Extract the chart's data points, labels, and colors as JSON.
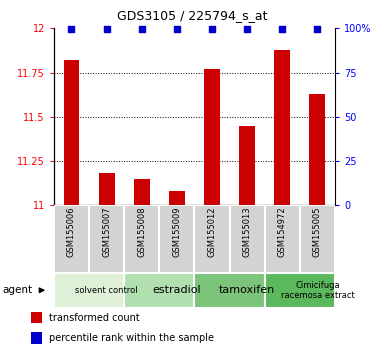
{
  "title": "GDS3105 / 225794_s_at",
  "samples": [
    "GSM155006",
    "GSM155007",
    "GSM155008",
    "GSM155009",
    "GSM155012",
    "GSM155013",
    "GSM154972",
    "GSM155005"
  ],
  "bar_values": [
    11.82,
    11.18,
    11.15,
    11.08,
    11.77,
    11.45,
    11.88,
    11.63
  ],
  "percentile_values": [
    99.5,
    99.5,
    99.5,
    99.5,
    99.5,
    99.5,
    99.5,
    99.5
  ],
  "ylim_left": [
    11.0,
    12.0
  ],
  "ylim_right": [
    0,
    100
  ],
  "yticks_left": [
    11.0,
    11.25,
    11.5,
    11.75,
    12.0
  ],
  "yticks_right": [
    0,
    25,
    50,
    75,
    100
  ],
  "ytick_labels_right": [
    "0",
    "25",
    "50",
    "75",
    "100%"
  ],
  "grid_lines": [
    11.25,
    11.5,
    11.75
  ],
  "bar_color": "#cc0000",
  "dot_color": "#0000cc",
  "agent_groups": [
    {
      "label": "solvent control",
      "start": 0,
      "end": 2,
      "color": "#dff0d8",
      "fontsize": 6
    },
    {
      "label": "estradiol",
      "start": 2,
      "end": 4,
      "color": "#b2dfb0",
      "fontsize": 8
    },
    {
      "label": "tamoxifen",
      "start": 4,
      "end": 6,
      "color": "#7bc47a",
      "fontsize": 8
    },
    {
      "label": "Cimicifuga\nracemosa extract",
      "start": 6,
      "end": 8,
      "color": "#5cb85c",
      "fontsize": 6
    }
  ],
  "legend_items": [
    {
      "color": "#cc0000",
      "label": "transformed count"
    },
    {
      "color": "#0000cc",
      "label": "percentile rank within the sample"
    }
  ],
  "sample_bg": "#d3d3d3",
  "bar_width": 0.45
}
